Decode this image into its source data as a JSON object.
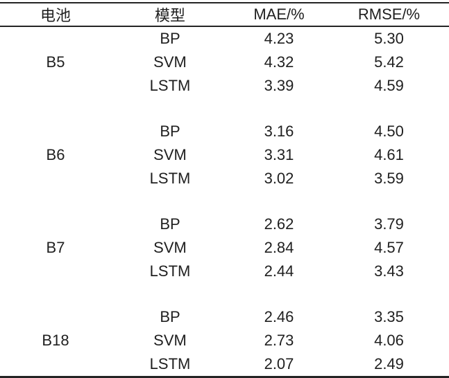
{
  "table": {
    "columns": [
      "电池",
      "模型",
      "MAE/%",
      "RMSE/%"
    ],
    "groups": [
      {
        "battery": "B5",
        "rows": [
          {
            "model": "BP",
            "mae": "4.23",
            "rmse": "5.30"
          },
          {
            "model": "SVM",
            "mae": "4.32",
            "rmse": "5.42"
          },
          {
            "model": "LSTM",
            "mae": "3.39",
            "rmse": "4.59"
          }
        ]
      },
      {
        "battery": "B6",
        "rows": [
          {
            "model": "BP",
            "mae": "3.16",
            "rmse": "4.50"
          },
          {
            "model": "SVM",
            "mae": "3.31",
            "rmse": "4.61"
          },
          {
            "model": "LSTM",
            "mae": "3.02",
            "rmse": "3.59"
          }
        ]
      },
      {
        "battery": "B7",
        "rows": [
          {
            "model": "BP",
            "mae": "2.62",
            "rmse": "3.79"
          },
          {
            "model": "SVM",
            "mae": "2.84",
            "rmse": "4.57"
          },
          {
            "model": "LSTM",
            "mae": "2.44",
            "rmse": "3.43"
          }
        ]
      },
      {
        "battery": "B18",
        "rows": [
          {
            "model": "BP",
            "mae": "2.46",
            "rmse": "3.35"
          },
          {
            "model": "SVM",
            "mae": "2.73",
            "rmse": "4.06"
          },
          {
            "model": "LSTM",
            "mae": "2.07",
            "rmse": "2.49"
          }
        ]
      }
    ]
  },
  "colors": {
    "text": "#1f1f1f",
    "rule": "#232323",
    "background": "#ffffff"
  },
  "chart_data": {
    "type": "table",
    "columns": [
      "电池",
      "模型",
      "MAE/%",
      "RMSE/%"
    ],
    "rows": [
      [
        "B5",
        "BP",
        4.23,
        5.3
      ],
      [
        "B5",
        "SVM",
        4.32,
        5.42
      ],
      [
        "B5",
        "LSTM",
        3.39,
        4.59
      ],
      [
        "B6",
        "BP",
        3.16,
        4.5
      ],
      [
        "B6",
        "SVM",
        3.31,
        4.61
      ],
      [
        "B6",
        "LSTM",
        3.02,
        3.59
      ],
      [
        "B7",
        "BP",
        2.62,
        3.79
      ],
      [
        "B7",
        "SVM",
        2.84,
        4.57
      ],
      [
        "B7",
        "LSTM",
        2.44,
        3.43
      ],
      [
        "B18",
        "BP",
        2.46,
        3.35
      ],
      [
        "B18",
        "SVM",
        2.73,
        4.06
      ],
      [
        "B18",
        "LSTM",
        2.07,
        2.49
      ]
    ]
  }
}
